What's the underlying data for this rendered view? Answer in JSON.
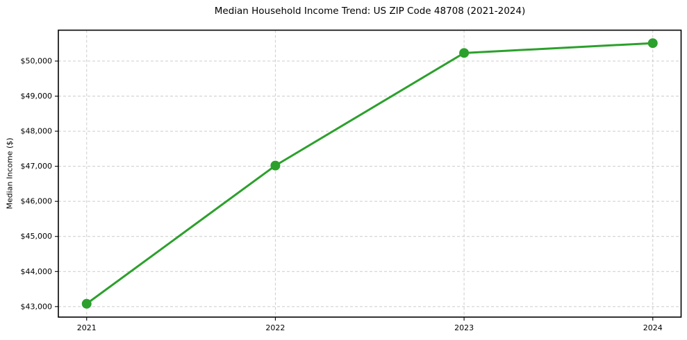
{
  "chart_data": {
    "type": "line",
    "title": "Median Household Income Trend: US ZIP Code 48708 (2021-2024)",
    "xlabel": "",
    "ylabel": "Median Income ($)",
    "x": [
      2021,
      2022,
      2023,
      2024
    ],
    "series": [
      {
        "name": "Median household income",
        "values": [
          43080,
          47020,
          50230,
          50510
        ]
      }
    ],
    "xtick_labels": [
      "2021",
      "2022",
      "2023",
      "2024"
    ],
    "ytick_values": [
      43000,
      44000,
      45000,
      46000,
      47000,
      48000,
      49000,
      50000
    ],
    "ytick_labels": [
      "$43,000",
      "$44,000",
      "$45,000",
      "$46,000",
      "$47,000",
      "$48,000",
      "$49,000",
      "$50,000"
    ],
    "xlim": [
      2020.85,
      2024.15
    ],
    "ylim": [
      42700,
      50880
    ],
    "grid": "on",
    "grid_style": "dashed",
    "legend_position": "none",
    "line_color": "#2ca02c",
    "marker": "circle",
    "marker_radius": 7,
    "line_width": 3,
    "grid_color": "#cccccc",
    "spine_color": "#000000",
    "text_color": "#000000",
    "background_color": "#ffffff"
  }
}
